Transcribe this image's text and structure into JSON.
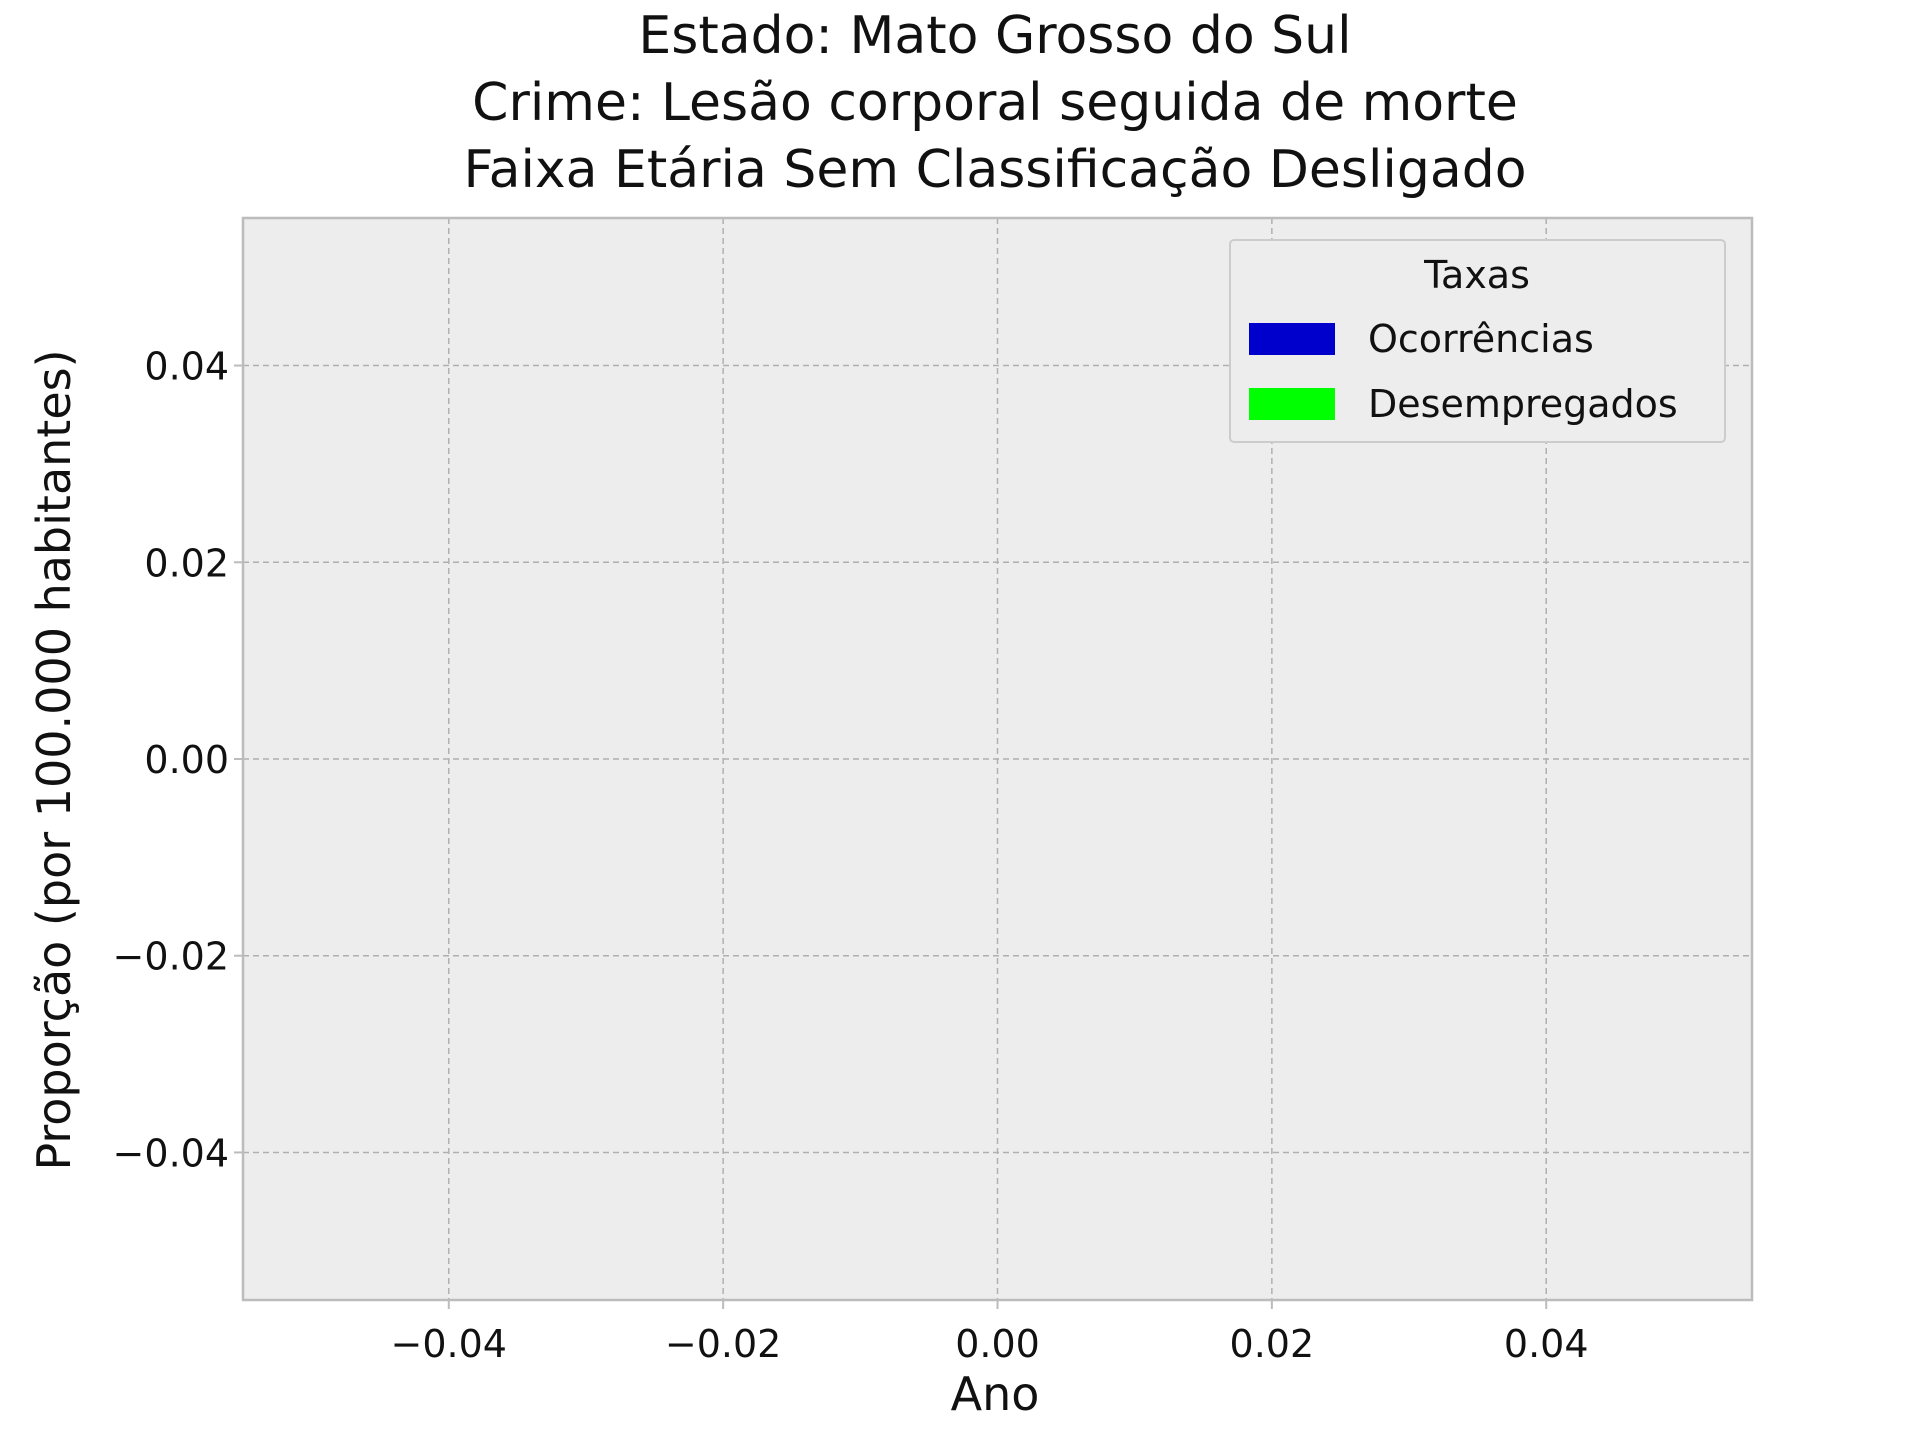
{
  "chart_data": {
    "type": "bar",
    "title_lines": [
      "Estado: Mato Grosso do Sul",
      "Crime: Lesão corporal seguida de morte",
      "Faixa Etária Sem Classificação   Desligado"
    ],
    "xlabel": "Ano",
    "ylabel": "Proporção (por 100.000 habitantes)",
    "xlim": [
      -0.055,
      0.055
    ],
    "ylim": [
      -0.055,
      0.055
    ],
    "xticks": [
      -0.04,
      -0.02,
      0.0,
      0.02,
      0.04
    ],
    "yticks": [
      -0.04,
      -0.02,
      0.0,
      0.02,
      0.04
    ],
    "xtick_labels": [
      "−0.04",
      "−0.02",
      "0.00",
      "0.02",
      "0.04"
    ],
    "ytick_labels": [
      "−0.04",
      "−0.02",
      "0.00",
      "0.02",
      "0.04"
    ],
    "grid": true,
    "legend": {
      "title": "Taxas",
      "placement": "top-right",
      "entries": [
        {
          "label": "Ocorrências",
          "color": "#0000cc"
        },
        {
          "label": "Desempregados",
          "color": "#00ff00"
        }
      ]
    },
    "series": [
      {
        "name": "Ocorrências",
        "values": []
      },
      {
        "name": "Desempregados",
        "values": []
      }
    ],
    "colors": {
      "plot_background": "#ededed",
      "axes_edge": "#bcbcbc",
      "grid": "#b0b0b0"
    }
  }
}
